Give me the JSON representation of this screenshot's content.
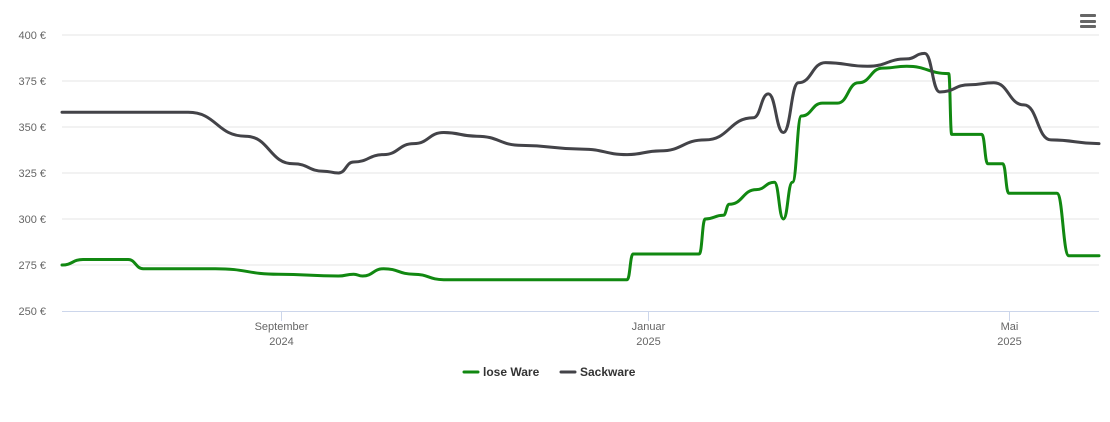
{
  "chart_data": {
    "type": "line",
    "y_ticks": [
      "250 €",
      "275 €",
      "300 €",
      "325 €",
      "350 €",
      "375 €",
      "400 €"
    ],
    "y_tick_values": [
      250,
      275,
      300,
      325,
      350,
      375,
      400
    ],
    "ylim": [
      250,
      400
    ],
    "x_range": [
      "2024-06-20",
      "2025-05-31"
    ],
    "x_ticks": [
      {
        "date": "2024-09-01",
        "month": "September",
        "year": "2024"
      },
      {
        "date": "2025-01-01",
        "month": "Januar",
        "year": "2025"
      },
      {
        "date": "2025-05-01",
        "month": "Mai",
        "year": "2025"
      }
    ],
    "grid": true,
    "legend_position": "bottom-center",
    "series": [
      {
        "name": "lose Ware",
        "color": "#118811",
        "points": [
          [
            "2024-06-20",
            275
          ],
          [
            "2024-06-27",
            278
          ],
          [
            "2024-07-12",
            278
          ],
          [
            "2024-07-17",
            273
          ],
          [
            "2024-08-10",
            273
          ],
          [
            "2024-08-31",
            270
          ],
          [
            "2024-09-20",
            269
          ],
          [
            "2024-09-25",
            270
          ],
          [
            "2024-09-28",
            269
          ],
          [
            "2024-10-05",
            273
          ],
          [
            "2024-10-15",
            270
          ],
          [
            "2024-10-25",
            267
          ],
          [
            "2024-12-25",
            267
          ],
          [
            "2024-12-27",
            281
          ],
          [
            "2025-01-18",
            281
          ],
          [
            "2025-01-20",
            300
          ],
          [
            "2025-01-26",
            302
          ],
          [
            "2025-01-28",
            308
          ],
          [
            "2025-02-06",
            316
          ],
          [
            "2025-02-12",
            320
          ],
          [
            "2025-02-15",
            300
          ],
          [
            "2025-02-18",
            320
          ],
          [
            "2025-02-21",
            356
          ],
          [
            "2025-02-28",
            363
          ],
          [
            "2025-03-05",
            363
          ],
          [
            "2025-03-12",
            374
          ],
          [
            "2025-03-20",
            382
          ],
          [
            "2025-03-28",
            383
          ],
          [
            "2025-04-11",
            379
          ],
          [
            "2025-04-12",
            346
          ],
          [
            "2025-04-22",
            346
          ],
          [
            "2025-04-24",
            330
          ],
          [
            "2025-04-29",
            330
          ],
          [
            "2025-05-01",
            314
          ],
          [
            "2025-05-17",
            314
          ],
          [
            "2025-05-21",
            280
          ],
          [
            "2025-05-31",
            280
          ]
        ]
      },
      {
        "name": "Sackware",
        "color": "#434348",
        "points": [
          [
            "2024-06-20",
            358
          ],
          [
            "2024-08-01",
            358
          ],
          [
            "2024-08-20",
            345
          ],
          [
            "2024-09-05",
            330
          ],
          [
            "2024-09-15",
            326
          ],
          [
            "2024-09-20",
            325
          ],
          [
            "2024-09-25",
            331
          ],
          [
            "2024-10-05",
            335
          ],
          [
            "2024-10-15",
            341
          ],
          [
            "2024-10-25",
            347
          ],
          [
            "2024-11-05",
            345
          ],
          [
            "2024-11-20",
            340
          ],
          [
            "2024-12-10",
            338
          ],
          [
            "2024-12-25",
            335
          ],
          [
            "2025-01-05",
            337
          ],
          [
            "2025-01-20",
            343
          ],
          [
            "2025-02-05",
            355
          ],
          [
            "2025-02-10",
            368
          ],
          [
            "2025-02-15",
            347
          ],
          [
            "2025-02-20",
            374
          ],
          [
            "2025-03-01",
            385
          ],
          [
            "2025-03-15",
            383
          ],
          [
            "2025-03-28",
            387
          ],
          [
            "2025-04-03",
            390
          ],
          [
            "2025-04-08",
            369
          ],
          [
            "2025-04-18",
            373
          ],
          [
            "2025-04-26",
            374
          ],
          [
            "2025-05-06",
            362
          ],
          [
            "2025-05-15",
            343
          ],
          [
            "2025-05-31",
            341
          ]
        ]
      }
    ]
  },
  "ui": {
    "menu_icon": "hamburger-menu-icon"
  }
}
